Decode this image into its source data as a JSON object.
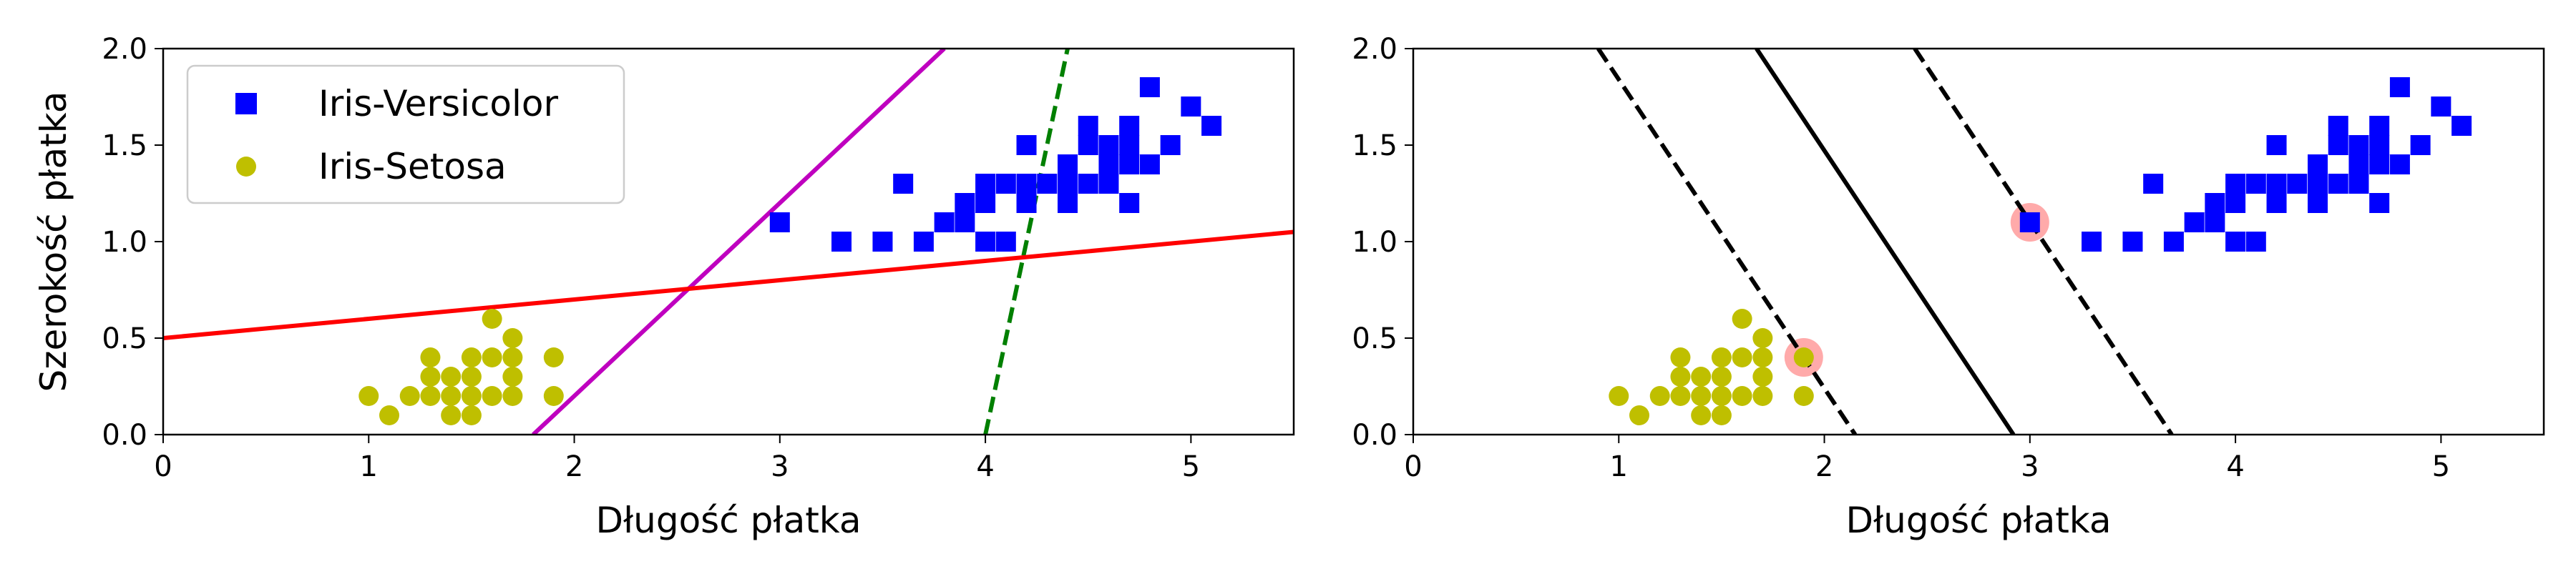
{
  "chart_data": [
    {
      "type": "scatter",
      "xlabel": "Długość płatka",
      "ylabel": "Szerokość płatka",
      "xlim": [
        0,
        5.5
      ],
      "ylim": [
        0,
        2.0
      ],
      "xticks": [
        0,
        1,
        2,
        3,
        4,
        5
      ],
      "xtick_labels": [
        "0",
        "1",
        "2",
        "3",
        "4",
        "5"
      ],
      "yticks": [
        0.0,
        0.5,
        1.0,
        1.5,
        2.0
      ],
      "ytick_labels": [
        "0.0",
        "0.5",
        "1.0",
        "1.5",
        "2.0"
      ],
      "grid": false,
      "legend_position": "top-left",
      "series": [
        {
          "name": "Iris-Versicolor",
          "marker": "square",
          "color": "#0000ff",
          "points": [
            [
              3.0,
              1.1
            ],
            [
              3.3,
              1.0
            ],
            [
              3.5,
              1.0
            ],
            [
              3.6,
              1.3
            ],
            [
              3.7,
              1.0
            ],
            [
              3.8,
              1.1
            ],
            [
              3.9,
              1.1
            ],
            [
              3.9,
              1.2
            ],
            [
              4.0,
              1.0
            ],
            [
              4.0,
              1.2
            ],
            [
              4.0,
              1.3
            ],
            [
              4.1,
              1.0
            ],
            [
              4.1,
              1.3
            ],
            [
              4.2,
              1.2
            ],
            [
              4.2,
              1.3
            ],
            [
              4.2,
              1.5
            ],
            [
              4.3,
              1.3
            ],
            [
              4.4,
              1.2
            ],
            [
              4.4,
              1.3
            ],
            [
              4.4,
              1.4
            ],
            [
              4.5,
              1.3
            ],
            [
              4.5,
              1.5
            ],
            [
              4.5,
              1.6
            ],
            [
              4.6,
              1.3
            ],
            [
              4.6,
              1.4
            ],
            [
              4.6,
              1.5
            ],
            [
              4.7,
              1.2
            ],
            [
              4.7,
              1.4
            ],
            [
              4.7,
              1.5
            ],
            [
              4.7,
              1.6
            ],
            [
              4.8,
              1.4
            ],
            [
              4.8,
              1.8
            ],
            [
              4.9,
              1.5
            ],
            [
              5.0,
              1.7
            ],
            [
              5.1,
              1.6
            ]
          ]
        },
        {
          "name": "Iris-Setosa",
          "marker": "circle",
          "color": "#bfbf00",
          "points": [
            [
              1.0,
              0.2
            ],
            [
              1.1,
              0.1
            ],
            [
              1.2,
              0.2
            ],
            [
              1.3,
              0.2
            ],
            [
              1.3,
              0.3
            ],
            [
              1.3,
              0.4
            ],
            [
              1.4,
              0.1
            ],
            [
              1.4,
              0.2
            ],
            [
              1.4,
              0.3
            ],
            [
              1.5,
              0.1
            ],
            [
              1.5,
              0.2
            ],
            [
              1.5,
              0.3
            ],
            [
              1.5,
              0.4
            ],
            [
              1.6,
              0.2
            ],
            [
              1.6,
              0.4
            ],
            [
              1.6,
              0.6
            ],
            [
              1.7,
              0.2
            ],
            [
              1.7,
              0.3
            ],
            [
              1.7,
              0.4
            ],
            [
              1.7,
              0.5
            ],
            [
              1.9,
              0.2
            ],
            [
              1.9,
              0.4
            ]
          ]
        }
      ],
      "lines": [
        {
          "style": "dashed",
          "color": "#008000",
          "from": [
            4.0,
            0.0
          ],
          "to": [
            4.4,
            2.0
          ]
        },
        {
          "style": "solid",
          "color": "#bf00bf",
          "from": [
            1.8,
            0.0
          ],
          "to": [
            3.8,
            2.0
          ]
        },
        {
          "style": "solid",
          "color": "#ff0000",
          "from": [
            0.0,
            0.5
          ],
          "to": [
            5.5,
            1.05
          ]
        }
      ]
    },
    {
      "type": "scatter",
      "xlabel": "Długość płatka",
      "ylabel": "",
      "xlim": [
        0,
        5.5
      ],
      "ylim": [
        0,
        2.0
      ],
      "xticks": [
        0,
        1,
        2,
        3,
        4,
        5
      ],
      "xtick_labels": [
        "0",
        "1",
        "2",
        "3",
        "4",
        "5"
      ],
      "yticks": [
        0.0,
        0.5,
        1.0,
        1.5,
        2.0
      ],
      "ytick_labels": [
        "0.0",
        "0.5",
        "1.0",
        "1.5",
        "2.0"
      ],
      "grid": false,
      "series": [
        {
          "name": "Iris-Versicolor",
          "marker": "square",
          "color": "#0000ff",
          "points": [
            [
              3.0,
              1.1
            ],
            [
              3.3,
              1.0
            ],
            [
              3.5,
              1.0
            ],
            [
              3.6,
              1.3
            ],
            [
              3.7,
              1.0
            ],
            [
              3.8,
              1.1
            ],
            [
              3.9,
              1.1
            ],
            [
              3.9,
              1.2
            ],
            [
              4.0,
              1.0
            ],
            [
              4.0,
              1.2
            ],
            [
              4.0,
              1.3
            ],
            [
              4.1,
              1.0
            ],
            [
              4.1,
              1.3
            ],
            [
              4.2,
              1.2
            ],
            [
              4.2,
              1.3
            ],
            [
              4.2,
              1.5
            ],
            [
              4.3,
              1.3
            ],
            [
              4.4,
              1.2
            ],
            [
              4.4,
              1.3
            ],
            [
              4.4,
              1.4
            ],
            [
              4.5,
              1.3
            ],
            [
              4.5,
              1.5
            ],
            [
              4.5,
              1.6
            ],
            [
              4.6,
              1.3
            ],
            [
              4.6,
              1.4
            ],
            [
              4.6,
              1.5
            ],
            [
              4.7,
              1.2
            ],
            [
              4.7,
              1.4
            ],
            [
              4.7,
              1.5
            ],
            [
              4.7,
              1.6
            ],
            [
              4.8,
              1.4
            ],
            [
              4.8,
              1.8
            ],
            [
              4.9,
              1.5
            ],
            [
              5.0,
              1.7
            ],
            [
              5.1,
              1.6
            ]
          ]
        },
        {
          "name": "Iris-Setosa",
          "marker": "circle",
          "color": "#bfbf00",
          "points": [
            [
              1.0,
              0.2
            ],
            [
              1.1,
              0.1
            ],
            [
              1.2,
              0.2
            ],
            [
              1.3,
              0.2
            ],
            [
              1.3,
              0.3
            ],
            [
              1.3,
              0.4
            ],
            [
              1.4,
              0.1
            ],
            [
              1.4,
              0.2
            ],
            [
              1.4,
              0.3
            ],
            [
              1.5,
              0.1
            ],
            [
              1.5,
              0.2
            ],
            [
              1.5,
              0.3
            ],
            [
              1.5,
              0.4
            ],
            [
              1.6,
              0.2
            ],
            [
              1.6,
              0.4
            ],
            [
              1.6,
              0.6
            ],
            [
              1.7,
              0.2
            ],
            [
              1.7,
              0.3
            ],
            [
              1.7,
              0.4
            ],
            [
              1.7,
              0.5
            ],
            [
              1.9,
              0.2
            ],
            [
              1.9,
              0.4
            ]
          ]
        }
      ],
      "support_vectors": {
        "color": "#ffaaaa",
        "points": [
          [
            1.9,
            0.4
          ],
          [
            3.0,
            1.1
          ]
        ]
      },
      "lines": [
        {
          "style": "solid",
          "color": "#000000",
          "from": [
            1.67,
            2.0
          ],
          "to": [
            2.92,
            0.0
          ]
        },
        {
          "style": "dashed",
          "color": "#000000",
          "from": [
            0.9,
            2.0
          ],
          "to": [
            2.15,
            0.0
          ]
        },
        {
          "style": "dashed",
          "color": "#000000",
          "from": [
            2.44,
            2.0
          ],
          "to": [
            3.69,
            0.0
          ]
        }
      ]
    }
  ]
}
